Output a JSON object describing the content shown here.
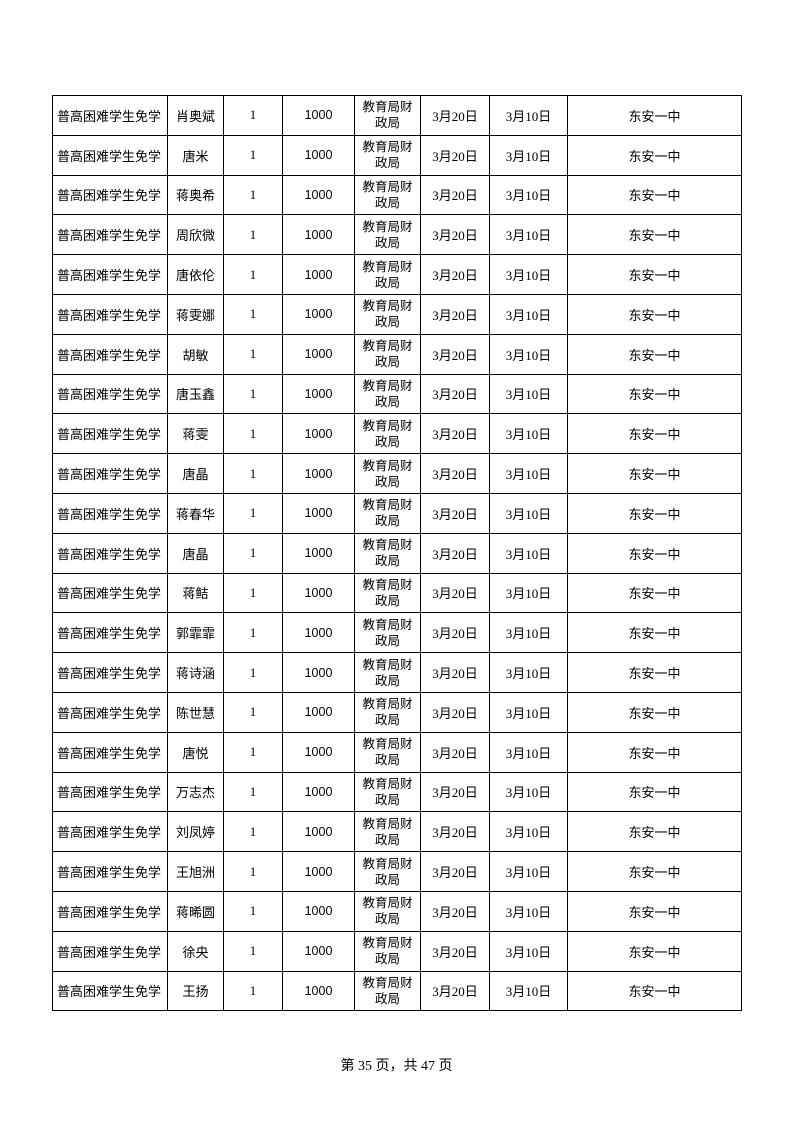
{
  "table": {
    "rows": [
      [
        "普高困难学生免学",
        "肖奥斌",
        1,
        1000,
        "教育局财政局",
        "3月20日",
        "3月10日",
        "东安一中"
      ],
      [
        "普高困难学生免学",
        "唐米",
        1,
        1000,
        "教育局财政局",
        "3月20日",
        "3月10日",
        "东安一中"
      ],
      [
        "普高困难学生免学",
        "蒋奥希",
        1,
        1000,
        "教育局财政局",
        "3月20日",
        "3月10日",
        "东安一中"
      ],
      [
        "普高困难学生免学",
        "周欣微",
        1,
        1000,
        "教育局财政局",
        "3月20日",
        "3月10日",
        "东安一中"
      ],
      [
        "普高困难学生免学",
        "唐依伦",
        1,
        1000,
        "教育局财政局",
        "3月20日",
        "3月10日",
        "东安一中"
      ],
      [
        "普高困难学生免学",
        "蒋雯娜",
        1,
        1000,
        "教育局财政局",
        "3月20日",
        "3月10日",
        "东安一中"
      ],
      [
        "普高困难学生免学",
        "胡敏",
        1,
        1000,
        "教育局财政局",
        "3月20日",
        "3月10日",
        "东安一中"
      ],
      [
        "普高困难学生免学",
        "唐玉鑫",
        1,
        1000,
        "教育局财政局",
        "3月20日",
        "3月10日",
        "东安一中"
      ],
      [
        "普高困难学生免学",
        "蒋雯",
        1,
        1000,
        "教育局财政局",
        "3月20日",
        "3月10日",
        "东安一中"
      ],
      [
        "普高困难学生免学",
        "唐晶",
        1,
        1000,
        "教育局财政局",
        "3月20日",
        "3月10日",
        "东安一中"
      ],
      [
        "普高困难学生免学",
        "蒋春华",
        1,
        1000,
        "教育局财政局",
        "3月20日",
        "3月10日",
        "东安一中"
      ],
      [
        "普高困难学生免学",
        "唐晶",
        1,
        1000,
        "教育局财政局",
        "3月20日",
        "3月10日",
        "东安一中"
      ],
      [
        "普高困难学生免学",
        "蒋鲒",
        1,
        1000,
        "教育局财政局",
        "3月20日",
        "3月10日",
        "东安一中"
      ],
      [
        "普高困难学生免学",
        "郭霏霏",
        1,
        1000,
        "教育局财政局",
        "3月20日",
        "3月10日",
        "东安一中"
      ],
      [
        "普高困难学生免学",
        "蒋诗涵",
        1,
        1000,
        "教育局财政局",
        "3月20日",
        "3月10日",
        "东安一中"
      ],
      [
        "普高困难学生免学",
        "陈世慧",
        1,
        1000,
        "教育局财政局",
        "3月20日",
        "3月10日",
        "东安一中"
      ],
      [
        "普高困难学生免学",
        "唐悦",
        1,
        1000,
        "教育局财政局",
        "3月20日",
        "3月10日",
        "东安一中"
      ],
      [
        "普高困难学生免学",
        "万志杰",
        1,
        1000,
        "教育局财政局",
        "3月20日",
        "3月10日",
        "东安一中"
      ],
      [
        "普高困难学生免学",
        "刘凤婷",
        1,
        1000,
        "教育局财政局",
        "3月20日",
        "3月10日",
        "东安一中"
      ],
      [
        "普高困难学生免学",
        "王旭洲",
        1,
        1000,
        "教育局财政局",
        "3月20日",
        "3月10日",
        "东安一中"
      ],
      [
        "普高困难学生免学",
        "蒋晞圆",
        1,
        1000,
        "教育局财政局",
        "3月20日",
        "3月10日",
        "东安一中"
      ],
      [
        "普高困难学生免学",
        "徐央",
        1,
        1000,
        "教育局财政局",
        "3月20日",
        "3月10日",
        "东安一中"
      ],
      [
        "普高困难学生免学",
        "王扬",
        1,
        1000,
        "教育局财政局",
        "3月20日",
        "3月10日",
        "东安一中"
      ]
    ]
  },
  "footer": "第 35 页，共 47 页"
}
